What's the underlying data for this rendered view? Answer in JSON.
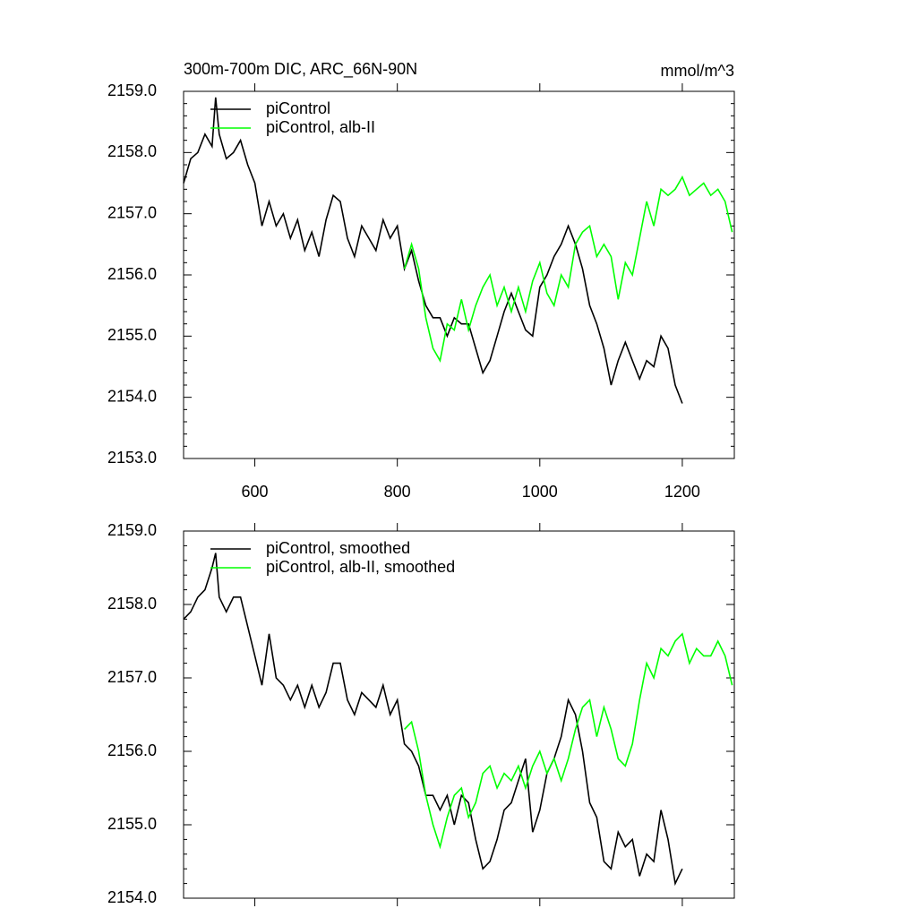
{
  "chart_data": [
    {
      "type": "line",
      "title": "300m-700m DIC, ARC_66N-90N",
      "units": "mmol/m^3",
      "xlim": [
        500,
        1273
      ],
      "xticks": [
        600,
        800,
        1000,
        1200
      ],
      "ylim": [
        2153,
        2159
      ],
      "yticks": [
        {
          "value": 2153,
          "label": "2153.0"
        },
        {
          "value": 2154,
          "label": "2154.0"
        },
        {
          "value": 2155,
          "label": "2155.0"
        },
        {
          "value": 2156,
          "label": "2156.0"
        },
        {
          "value": 2157,
          "label": "2157.0"
        },
        {
          "value": 2158,
          "label": "2158.0"
        },
        {
          "value": 2159,
          "label": "2159.0"
        }
      ],
      "series": [
        {
          "name": "piControl",
          "color": "#000000",
          "x": [
            500,
            510,
            520,
            530,
            540,
            545,
            550,
            560,
            570,
            580,
            590,
            600,
            610,
            620,
            630,
            640,
            650,
            660,
            670,
            680,
            690,
            700,
            710,
            720,
            730,
            740,
            750,
            760,
            770,
            780,
            790,
            800,
            810,
            820,
            830,
            840,
            850,
            860,
            870,
            880,
            890,
            900,
            910,
            920,
            930,
            940,
            950,
            960,
            970,
            980,
            990,
            1000,
            1010,
            1020,
            1030,
            1040,
            1050,
            1060,
            1070,
            1080,
            1090,
            1100,
            1110,
            1120,
            1130,
            1140,
            1150,
            1160,
            1170,
            1180,
            1190,
            1200
          ],
          "values": [
            2157.5,
            2157.9,
            2158.0,
            2158.3,
            2158.1,
            2158.9,
            2158.3,
            2157.9,
            2158.0,
            2158.2,
            2157.8,
            2157.5,
            2156.8,
            2157.2,
            2156.8,
            2157.0,
            2156.6,
            2156.9,
            2156.4,
            2156.7,
            2156.3,
            2156.9,
            2157.3,
            2157.2,
            2156.6,
            2156.3,
            2156.8,
            2156.6,
            2156.4,
            2156.9,
            2156.6,
            2156.8,
            2156.1,
            2156.4,
            2155.9,
            2155.5,
            2155.3,
            2155.3,
            2155.0,
            2155.3,
            2155.2,
            2155.2,
            2154.8,
            2154.4,
            2154.6,
            2155.0,
            2155.4,
            2155.7,
            2155.4,
            2155.1,
            2155.0,
            2155.8,
            2156.0,
            2156.3,
            2156.5,
            2156.8,
            2156.5,
            2156.1,
            2155.5,
            2155.2,
            2154.8,
            2154.2,
            2154.6,
            2154.9,
            2154.6,
            2154.3,
            2154.6,
            2154.5,
            2155.0,
            2154.8,
            2154.2,
            2153.9
          ]
        },
        {
          "name": "piControl, alb-II",
          "color": "#00ff00",
          "x": [
            810,
            820,
            830,
            840,
            850,
            860,
            870,
            880,
            890,
            900,
            910,
            920,
            930,
            940,
            950,
            960,
            970,
            980,
            990,
            1000,
            1010,
            1020,
            1030,
            1040,
            1050,
            1060,
            1070,
            1080,
            1090,
            1100,
            1110,
            1120,
            1130,
            1140,
            1150,
            1160,
            1170,
            1180,
            1190,
            1200,
            1210,
            1220,
            1230,
            1240,
            1250,
            1260,
            1270
          ],
          "values": [
            2156.1,
            2156.5,
            2156.1,
            2155.3,
            2154.8,
            2154.6,
            2155.2,
            2155.1,
            2155.6,
            2155.1,
            2155.5,
            2155.8,
            2156.0,
            2155.5,
            2155.8,
            2155.4,
            2155.8,
            2155.4,
            2155.9,
            2156.2,
            2155.7,
            2155.5,
            2156.0,
            2155.8,
            2156.5,
            2156.7,
            2156.8,
            2156.3,
            2156.5,
            2156.3,
            2155.6,
            2156.2,
            2156.0,
            2156.6,
            2157.2,
            2156.8,
            2157.4,
            2157.3,
            2157.4,
            2157.6,
            2157.3,
            2157.4,
            2157.5,
            2157.3,
            2157.4,
            2157.2,
            2156.7
          ]
        }
      ]
    },
    {
      "type": "line",
      "xlim": [
        500,
        1273
      ],
      "xticks": [
        600,
        800,
        1000,
        1200
      ],
      "ylim": [
        2154,
        2159
      ],
      "yticks": [
        {
          "value": 2154,
          "label": "2154.0"
        },
        {
          "value": 2155,
          "label": "2155.0"
        },
        {
          "value": 2156,
          "label": "2156.0"
        },
        {
          "value": 2157,
          "label": "2157.0"
        },
        {
          "value": 2158,
          "label": "2158.0"
        },
        {
          "value": 2159,
          "label": "2159.0"
        }
      ],
      "series": [
        {
          "name": "piControl, smoothed",
          "color": "#000000",
          "x": [
            500,
            510,
            520,
            530,
            540,
            545,
            550,
            560,
            570,
            580,
            590,
            600,
            610,
            620,
            630,
            640,
            650,
            660,
            670,
            680,
            690,
            700,
            710,
            720,
            730,
            740,
            750,
            760,
            770,
            780,
            790,
            800,
            810,
            820,
            830,
            840,
            850,
            860,
            870,
            880,
            890,
            900,
            910,
            920,
            930,
            940,
            950,
            960,
            970,
            980,
            990,
            1000,
            1010,
            1020,
            1030,
            1040,
            1050,
            1060,
            1070,
            1080,
            1090,
            1100,
            1110,
            1120,
            1130,
            1140,
            1150,
            1160,
            1170,
            1180,
            1190,
            1200
          ],
          "values": [
            2157.8,
            2157.9,
            2158.1,
            2158.2,
            2158.5,
            2158.7,
            2158.1,
            2157.9,
            2158.1,
            2158.1,
            2157.7,
            2157.3,
            2156.9,
            2157.6,
            2157.0,
            2156.9,
            2156.7,
            2156.9,
            2156.6,
            2156.9,
            2156.6,
            2156.8,
            2157.2,
            2157.2,
            2156.7,
            2156.5,
            2156.8,
            2156.7,
            2156.6,
            2156.9,
            2156.5,
            2156.7,
            2156.1,
            2156.0,
            2155.8,
            2155.4,
            2155.4,
            2155.2,
            2155.4,
            2155.0,
            2155.4,
            2155.3,
            2154.8,
            2154.4,
            2154.5,
            2154.8,
            2155.2,
            2155.3,
            2155.6,
            2155.9,
            2154.9,
            2155.2,
            2155.7,
            2155.9,
            2156.2,
            2156.7,
            2156.5,
            2156.0,
            2155.3,
            2155.1,
            2154.5,
            2154.4,
            2154.9,
            2154.7,
            2154.8,
            2154.3,
            2154.6,
            2154.5,
            2155.2,
            2154.8,
            2154.2,
            2154.4
          ]
        },
        {
          "name": "piControl, alb-II, smoothed",
          "color": "#00ff00",
          "x": [
            810,
            820,
            830,
            840,
            850,
            860,
            870,
            880,
            890,
            900,
            910,
            920,
            930,
            940,
            950,
            960,
            970,
            980,
            990,
            1000,
            1010,
            1020,
            1030,
            1040,
            1050,
            1060,
            1070,
            1080,
            1090,
            1100,
            1110,
            1120,
            1130,
            1140,
            1150,
            1160,
            1170,
            1180,
            1190,
            1200,
            1210,
            1220,
            1230,
            1240,
            1250,
            1260,
            1270
          ],
          "values": [
            2156.3,
            2156.4,
            2156.0,
            2155.4,
            2155.0,
            2154.7,
            2155.1,
            2155.4,
            2155.5,
            2155.1,
            2155.3,
            2155.7,
            2155.8,
            2155.5,
            2155.7,
            2155.6,
            2155.8,
            2155.5,
            2155.8,
            2156.0,
            2155.7,
            2155.9,
            2155.6,
            2155.9,
            2156.3,
            2156.6,
            2156.7,
            2156.2,
            2156.6,
            2156.3,
            2155.9,
            2155.8,
            2156.1,
            2156.7,
            2157.2,
            2157.0,
            2157.4,
            2157.3,
            2157.5,
            2157.6,
            2157.2,
            2157.4,
            2157.3,
            2157.3,
            2157.5,
            2157.3,
            2156.9
          ]
        }
      ]
    }
  ]
}
